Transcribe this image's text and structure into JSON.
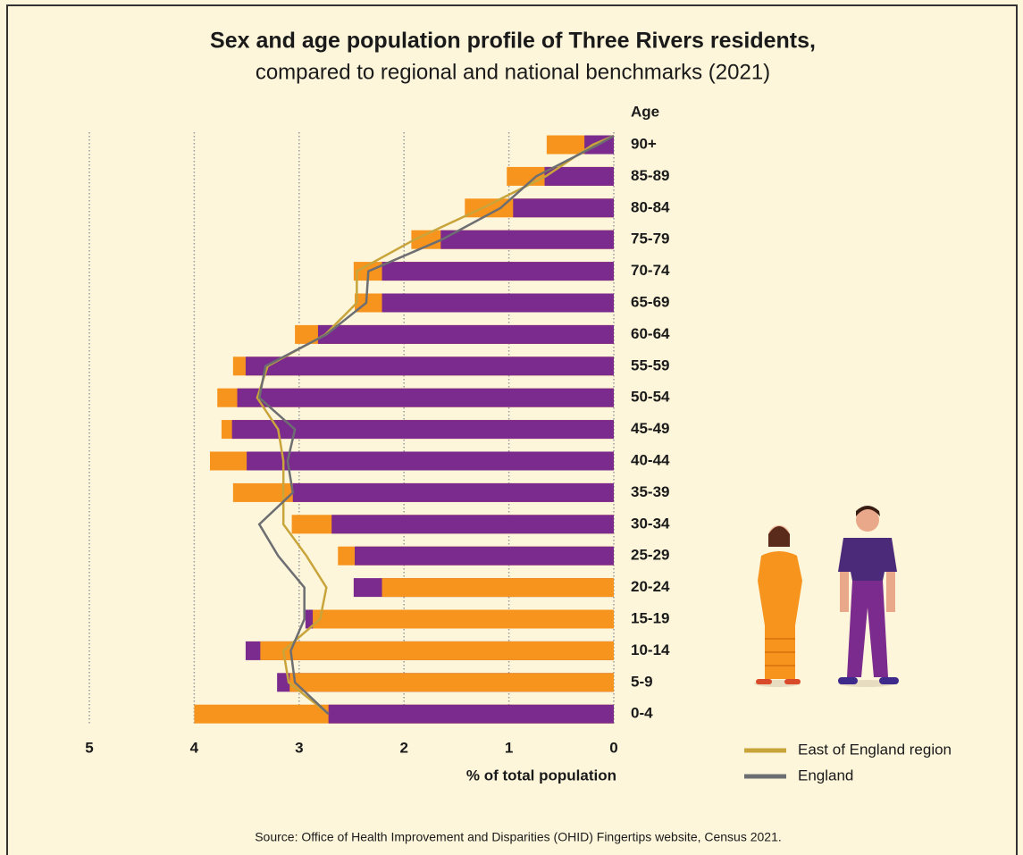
{
  "chart_data": {
    "type": "bar",
    "orientation": "horizontal",
    "title": "Sex and age population profile of Three Rivers residents,",
    "subtitle": "compared to regional and national benchmarks (2021)",
    "category_label": "Age",
    "xlabel": "% of total population",
    "source": "Source: Office of Health Improvement and Disparities (OHID) Fingertips website, Census 2021.",
    "categories": [
      "90+",
      "85-89",
      "80-84",
      "75-79",
      "70-74",
      "65-69",
      "60-64",
      "55-59",
      "50-54",
      "45-49",
      "40-44",
      "35-39",
      "30-34",
      "25-29",
      "20-24",
      "15-19",
      "10-14",
      "5-9",
      "0-4"
    ],
    "series": [
      {
        "type": "bar",
        "color": "#f7941d",
        "values": [
          0.64,
          1.02,
          1.42,
          1.93,
          2.48,
          2.47,
          3.04,
          3.63,
          3.78,
          3.74,
          3.85,
          3.63,
          3.07,
          2.63,
          2.21,
          2.87,
          3.37,
          3.09,
          4.0
        ]
      },
      {
        "type": "bar",
        "color": "#7b2a8e",
        "values": [
          0.28,
          0.66,
          0.96,
          1.65,
          2.21,
          2.21,
          2.82,
          3.51,
          3.59,
          3.64,
          3.5,
          3.06,
          2.69,
          2.47,
          2.48,
          2.94,
          3.51,
          3.21,
          2.72
        ]
      },
      {
        "type": "line",
        "name": "East of England region",
        "color": "#c9a43a",
        "values": [
          0.2,
          0.65,
          1.25,
          1.9,
          2.45,
          2.45,
          2.75,
          3.3,
          3.4,
          3.2,
          3.15,
          3.15,
          3.15,
          2.93,
          2.74,
          2.8,
          3.15,
          3.1,
          2.72
        ]
      },
      {
        "type": "line",
        "name": "England",
        "color": "#6d6e71",
        "values": [
          0.15,
          0.74,
          1.08,
          1.64,
          2.34,
          2.36,
          2.74,
          3.32,
          3.38,
          3.04,
          3.11,
          3.06,
          3.38,
          3.2,
          2.95,
          2.95,
          3.08,
          3.04,
          2.72
        ]
      }
    ],
    "xlim": [
      0,
      5
    ],
    "xticks": [
      0,
      1,
      2,
      3,
      4,
      5
    ],
    "x_reversed": true,
    "grid": true
  }
}
